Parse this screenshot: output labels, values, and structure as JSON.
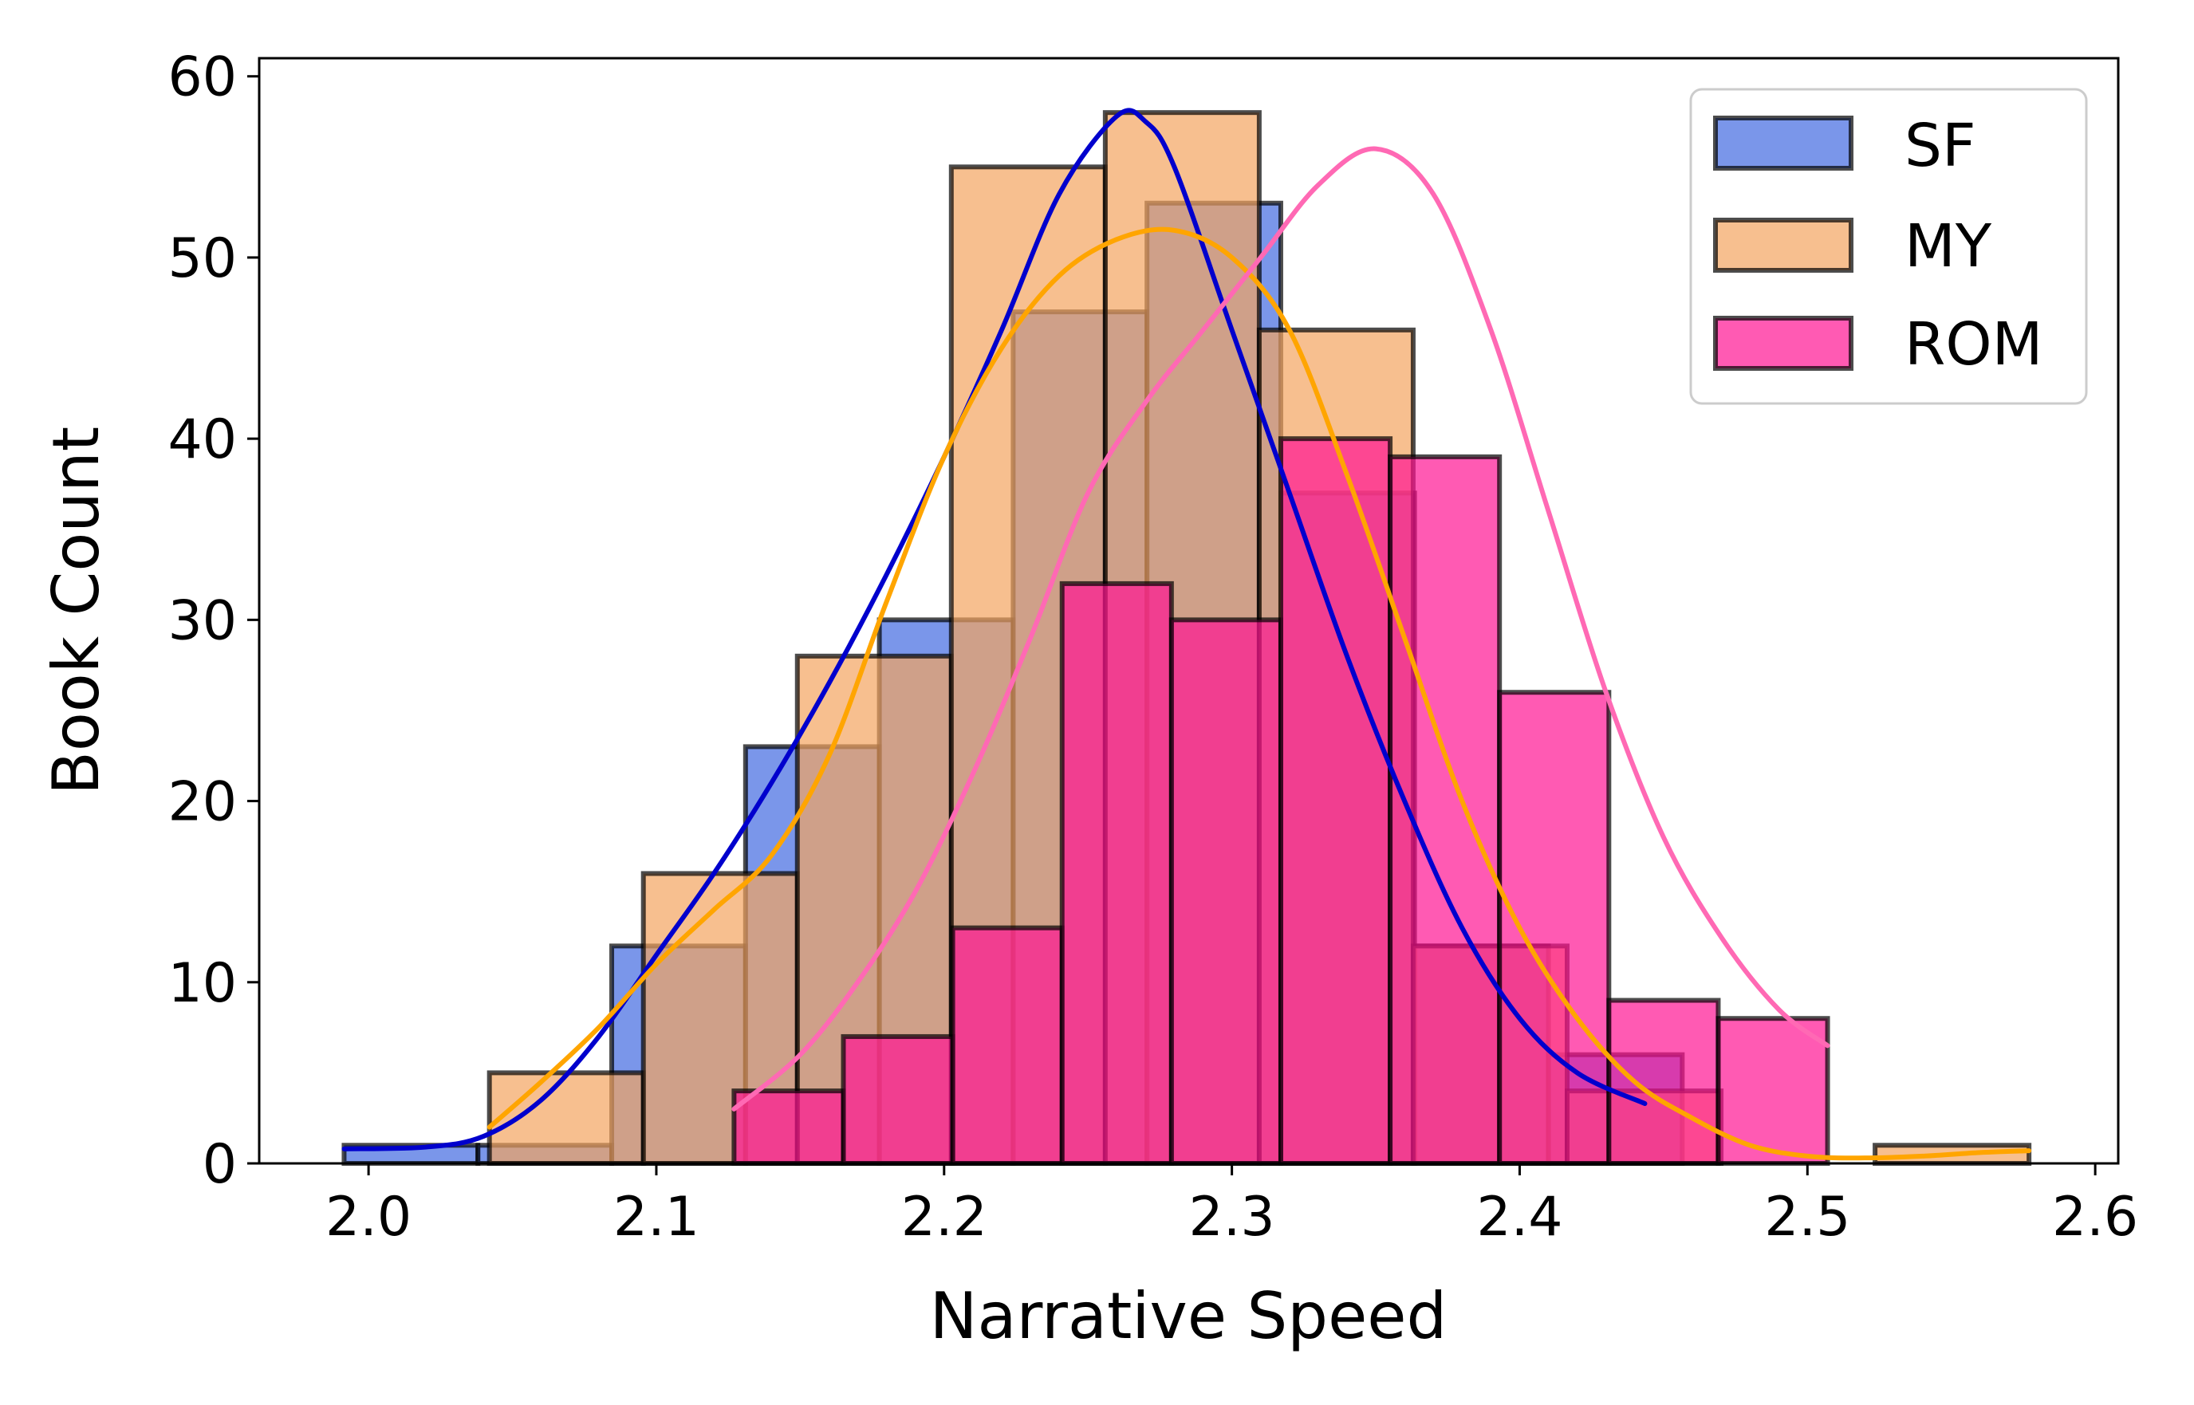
{
  "chart_data": {
    "type": "histogram",
    "xlabel": "Narrative Speed",
    "ylabel": "Book Count",
    "xlim": [
      1.962,
      2.608
    ],
    "ylim": [
      0,
      61
    ],
    "x_ticks": [
      "2.0",
      "2.1",
      "2.2",
      "2.3",
      "2.4",
      "2.5",
      "2.6"
    ],
    "y_ticks": [
      "0",
      "10",
      "20",
      "30",
      "40",
      "50",
      "60"
    ],
    "legend": {
      "position": "top-right",
      "entries": [
        "SF",
        "MY",
        "ROM"
      ]
    },
    "colors": {
      "SF_fill": "#4169E1",
      "SF_curve": "#0000CD",
      "MY_fill": "#F4A460",
      "MY_curve": "#FFA500",
      "ROM_fill": "#FF1493",
      "ROM_curve": "#FF69B4",
      "bar_edge": "#000000"
    },
    "series": [
      {
        "name": "SF",
        "bins": [
          {
            "x0": 1.9915,
            "x1": 2.038,
            "count": 1
          },
          {
            "x0": 2.038,
            "x1": 2.0845,
            "count": 1
          },
          {
            "x0": 2.0845,
            "x1": 2.131,
            "count": 12
          },
          {
            "x0": 2.131,
            "x1": 2.1775,
            "count": 23
          },
          {
            "x0": 2.1775,
            "x1": 2.224,
            "count": 30
          },
          {
            "x0": 2.224,
            "x1": 2.2705,
            "count": 47
          },
          {
            "x0": 2.2705,
            "x1": 2.317,
            "count": 53
          },
          {
            "x0": 2.317,
            "x1": 2.3635,
            "count": 37
          },
          {
            "x0": 2.3635,
            "x1": 2.41,
            "count": 12
          },
          {
            "x0": 2.41,
            "x1": 2.4565,
            "count": 6
          }
        ],
        "kde": [
          [
            1.9915,
            0.8
          ],
          [
            2.02,
            0.9
          ],
          [
            2.04,
            1.5
          ],
          [
            2.06,
            3.5
          ],
          [
            2.08,
            7
          ],
          [
            2.1,
            11.5
          ],
          [
            2.12,
            16
          ],
          [
            2.14,
            21
          ],
          [
            2.16,
            26.5
          ],
          [
            2.18,
            32.5
          ],
          [
            2.2,
            39
          ],
          [
            2.22,
            46
          ],
          [
            2.24,
            53.5
          ],
          [
            2.26,
            57.8
          ],
          [
            2.27,
            57.5
          ],
          [
            2.28,
            55
          ],
          [
            2.3,
            46
          ],
          [
            2.32,
            37
          ],
          [
            2.34,
            28
          ],
          [
            2.36,
            20
          ],
          [
            2.38,
            13
          ],
          [
            2.4,
            8
          ],
          [
            2.42,
            5
          ],
          [
            2.4435,
            3.3
          ]
        ]
      },
      {
        "name": "MY",
        "bins": [
          {
            "x0": 2.042,
            "x1": 2.0955,
            "count": 5
          },
          {
            "x0": 2.0955,
            "x1": 2.149,
            "count": 16
          },
          {
            "x0": 2.149,
            "x1": 2.2025,
            "count": 28
          },
          {
            "x0": 2.2025,
            "x1": 2.256,
            "count": 55
          },
          {
            "x0": 2.256,
            "x1": 2.3095,
            "count": 58
          },
          {
            "x0": 2.3095,
            "x1": 2.363,
            "count": 46
          },
          {
            "x0": 2.363,
            "x1": 2.4165,
            "count": 12
          },
          {
            "x0": 2.4165,
            "x1": 2.47,
            "count": 4
          },
          {
            "x0": 2.47,
            "x1": 2.5235,
            "count": 0
          },
          {
            "x0": 2.5235,
            "x1": 2.577,
            "count": 1
          }
        ],
        "kde": [
          [
            2.042,
            2
          ],
          [
            2.06,
            4.5
          ],
          [
            2.08,
            7.5
          ],
          [
            2.1,
            11
          ],
          [
            2.12,
            14
          ],
          [
            2.14,
            17
          ],
          [
            2.16,
            22.5
          ],
          [
            2.18,
            31
          ],
          [
            2.2,
            39
          ],
          [
            2.22,
            45
          ],
          [
            2.24,
            49
          ],
          [
            2.26,
            51
          ],
          [
            2.28,
            51.5
          ],
          [
            2.3,
            50
          ],
          [
            2.32,
            46
          ],
          [
            2.34,
            38
          ],
          [
            2.36,
            29
          ],
          [
            2.38,
            20
          ],
          [
            2.4,
            13
          ],
          [
            2.42,
            8
          ],
          [
            2.44,
            4.5
          ],
          [
            2.46,
            2.5
          ],
          [
            2.48,
            1
          ],
          [
            2.5,
            0.4
          ],
          [
            2.52,
            0.3
          ],
          [
            2.54,
            0.4
          ],
          [
            2.56,
            0.6
          ],
          [
            2.577,
            0.7
          ]
        ]
      },
      {
        "name": "ROM",
        "bins": [
          {
            "x0": 2.127,
            "x1": 2.165,
            "count": 4
          },
          {
            "x0": 2.165,
            "x1": 2.203,
            "count": 7
          },
          {
            "x0": 2.203,
            "x1": 2.241,
            "count": 13
          },
          {
            "x0": 2.241,
            "x1": 2.279,
            "count": 32
          },
          {
            "x0": 2.279,
            "x1": 2.317,
            "count": 30
          },
          {
            "x0": 2.317,
            "x1": 2.355,
            "count": 40
          },
          {
            "x0": 2.355,
            "x1": 2.393,
            "count": 39
          },
          {
            "x0": 2.393,
            "x1": 2.431,
            "count": 26
          },
          {
            "x0": 2.431,
            "x1": 2.469,
            "count": 9
          },
          {
            "x0": 2.469,
            "x1": 2.507,
            "count": 8
          }
        ],
        "kde": [
          [
            2.127,
            3
          ],
          [
            2.15,
            6
          ],
          [
            2.17,
            10
          ],
          [
            2.19,
            15
          ],
          [
            2.21,
            21.5
          ],
          [
            2.23,
            29
          ],
          [
            2.25,
            37
          ],
          [
            2.27,
            42
          ],
          [
            2.29,
            46
          ],
          [
            2.31,
            50
          ],
          [
            2.33,
            54
          ],
          [
            2.35,
            56
          ],
          [
            2.37,
            53.5
          ],
          [
            2.39,
            46
          ],
          [
            2.41,
            36
          ],
          [
            2.43,
            26
          ],
          [
            2.45,
            18
          ],
          [
            2.47,
            12.5
          ],
          [
            2.49,
            8.5
          ],
          [
            2.507,
            6.5
          ]
        ]
      }
    ]
  }
}
